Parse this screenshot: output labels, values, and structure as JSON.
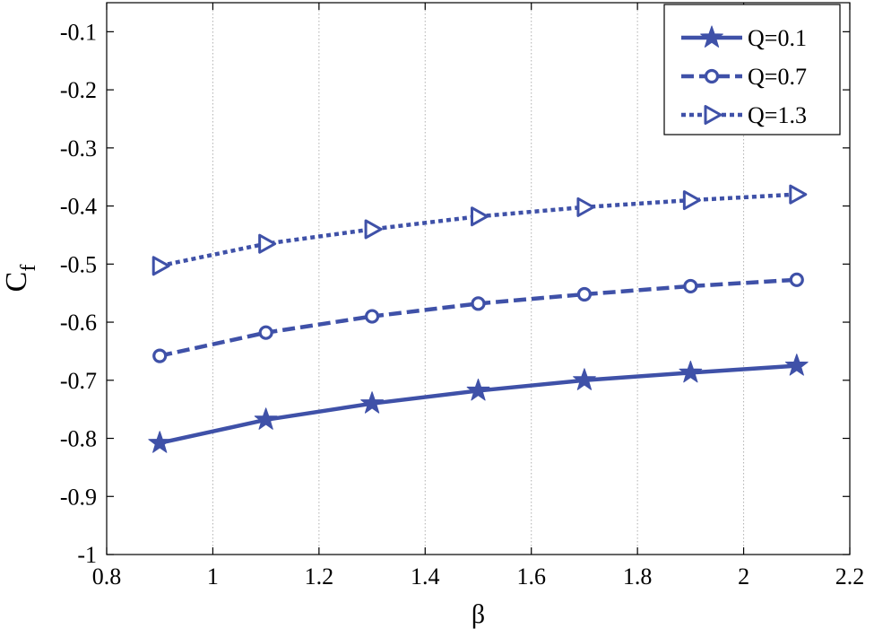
{
  "chart_data": {
    "type": "line",
    "title": "",
    "xlabel": "β",
    "ylabel": {
      "main": "C",
      "subscript": "f"
    },
    "xlim": [
      0.8,
      2.2
    ],
    "ylim": [
      -1,
      -0.05
    ],
    "xticks": [
      0.8,
      1,
      1.2,
      1.4,
      1.6,
      1.8,
      2,
      2.2
    ],
    "xtick_labels": [
      "0.8",
      "1",
      "1.2",
      "1.4",
      "1.6",
      "1.8",
      "2",
      "2.2"
    ],
    "yticks": [
      -1,
      -0.9,
      -0.8,
      -0.7,
      -0.6,
      -0.5,
      -0.4,
      -0.3,
      -0.2,
      -0.1
    ],
    "ytick_labels": [
      "-1",
      "-0.9",
      "-0.8",
      "-0.7",
      "-0.6",
      "-0.5",
      "-0.4",
      "-0.3",
      "-0.2",
      "-0.1"
    ],
    "grid": "vertical-dotted",
    "legend_position": "top-right",
    "line_color": "#3f51a8",
    "x": [
      0.9,
      1.1,
      1.3,
      1.5,
      1.7,
      1.9,
      2.1
    ],
    "series": [
      {
        "name": "Q=0.1",
        "line_style": "solid",
        "marker": "star",
        "values": [
          -0.808,
          -0.768,
          -0.74,
          -0.718,
          -0.7,
          -0.687,
          -0.675
        ]
      },
      {
        "name": "Q=0.7",
        "line_style": "dashed",
        "marker": "circle",
        "values": [
          -0.658,
          -0.618,
          -0.59,
          -0.568,
          -0.552,
          -0.538,
          -0.527
        ]
      },
      {
        "name": "Q=1.3",
        "line_style": "dotted",
        "marker": "triangle-right",
        "values": [
          -0.503,
          -0.465,
          -0.44,
          -0.418,
          -0.402,
          -0.39,
          -0.38
        ]
      }
    ]
  }
}
